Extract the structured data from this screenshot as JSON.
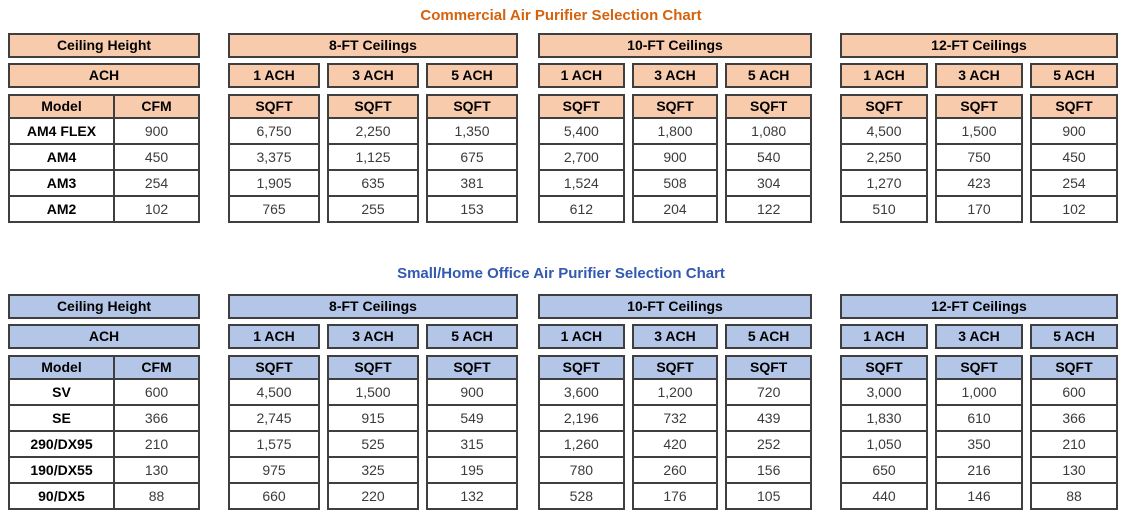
{
  "charts": [
    {
      "title": "Commercial Air Purifier Selection Chart",
      "theme": {
        "header_bg": "#F8CBAD",
        "title_color": "#D5620C",
        "border_color": "#3F3F3F"
      },
      "left": {
        "ceiling_height_label": "Ceiling Height",
        "ach_label": "ACH",
        "model_header": "Model",
        "cfm_header": "CFM",
        "models": [
          {
            "model": "AM4 FLEX",
            "cfm": "900"
          },
          {
            "model": "AM4",
            "cfm": "450"
          },
          {
            "model": "AM3",
            "cfm": "254"
          },
          {
            "model": "AM2",
            "cfm": "102"
          }
        ]
      },
      "sections": [
        {
          "id": "8ft",
          "label": "8-FT Ceilings",
          "ach_headers": [
            "1 ACH",
            "3 ACH",
            "5 ACH"
          ],
          "sqft_header": "SQFT",
          "columns": [
            [
              "6,750",
              "3,375",
              "1,905",
              "765"
            ],
            [
              "2,250",
              "1,125",
              "635",
              "255"
            ],
            [
              "1,350",
              "675",
              "381",
              "153"
            ]
          ]
        },
        {
          "id": "10ft",
          "label": "10-FT Ceilings",
          "ach_headers": [
            "1 ACH",
            "3 ACH",
            "5 ACH"
          ],
          "sqft_header": "SQFT",
          "columns": [
            [
              "5,400",
              "2,700",
              "1,524",
              "612"
            ],
            [
              "1,800",
              "900",
              "508",
              "204"
            ],
            [
              "1,080",
              "540",
              "304",
              "122"
            ]
          ]
        },
        {
          "id": "12ft",
          "label": "12-FT Ceilings",
          "ach_headers": [
            "1 ACH",
            "3 ACH",
            "5 ACH"
          ],
          "sqft_header": "SQFT",
          "columns": [
            [
              "4,500",
              "2,250",
              "1,270",
              "510"
            ],
            [
              "1,500",
              "750",
              "423",
              "170"
            ],
            [
              "900",
              "450",
              "254",
              "102"
            ]
          ]
        }
      ]
    },
    {
      "title": "Small/Home Office Air Purifier Selection Chart",
      "theme": {
        "header_bg": "#B4C6E7",
        "title_color": "#3359B0",
        "border_color": "#3F3F3F"
      },
      "left": {
        "ceiling_height_label": "Ceiling Height",
        "ach_label": "ACH",
        "model_header": "Model",
        "cfm_header": "CFM",
        "models": [
          {
            "model": "SV",
            "cfm": "600"
          },
          {
            "model": "SE",
            "cfm": "366"
          },
          {
            "model": "290/DX95",
            "cfm": "210"
          },
          {
            "model": "190/DX55",
            "cfm": "130"
          },
          {
            "model": "90/DX5",
            "cfm": "88"
          }
        ]
      },
      "sections": [
        {
          "id": "8ft",
          "label": "8-FT Ceilings",
          "ach_headers": [
            "1 ACH",
            "3 ACH",
            "5 ACH"
          ],
          "sqft_header": "SQFT",
          "columns": [
            [
              "4,500",
              "2,745",
              "1,575",
              "975",
              "660"
            ],
            [
              "1,500",
              "915",
              "525",
              "325",
              "220"
            ],
            [
              "900",
              "549",
              "315",
              "195",
              "132"
            ]
          ]
        },
        {
          "id": "10ft",
          "label": "10-FT Ceilings",
          "ach_headers": [
            "1 ACH",
            "3 ACH",
            "5 ACH"
          ],
          "sqft_header": "SQFT",
          "columns": [
            [
              "3,600",
              "2,196",
              "1,260",
              "780",
              "528"
            ],
            [
              "1,200",
              "732",
              "420",
              "260",
              "176"
            ],
            [
              "720",
              "439",
              "252",
              "156",
              "105"
            ]
          ]
        },
        {
          "id": "12ft",
          "label": "12-FT Ceilings",
          "ach_headers": [
            "1 ACH",
            "3 ACH",
            "5 ACH"
          ],
          "sqft_header": "SQFT",
          "columns": [
            [
              "3,000",
              "1,830",
              "1,050",
              "650",
              "440"
            ],
            [
              "1,000",
              "610",
              "350",
              "216",
              "146"
            ],
            [
              "600",
              "366",
              "210",
              "130",
              "88"
            ]
          ]
        }
      ]
    }
  ]
}
